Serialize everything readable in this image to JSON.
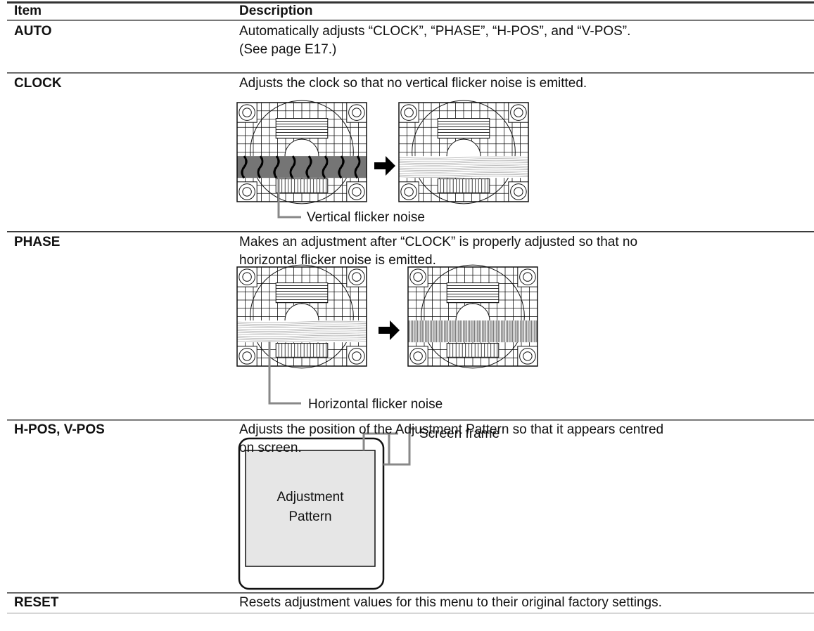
{
  "table": {
    "header": [
      "Item",
      "Description"
    ],
    "rows": [
      {
        "item": "AUTO",
        "description": [
          "Automatically adjusts “CLOCK”, “PHASE”, “H-POS”, and “V-POS”.",
          "(See page E17.)"
        ]
      },
      {
        "item": "CLOCK",
        "description": [
          "Adjusts the clock so that no vertical flicker noise is emitted."
        ],
        "figure_label": "Vertical flicker noise"
      },
      {
        "item": "PHASE",
        "description": [
          "Makes an adjustment after “CLOCK” is properly adjusted so that no",
          "horizontal flicker noise is emitted."
        ],
        "figure_label": "Horizontal flicker noise"
      },
      {
        "item": "H-POS, V-POS",
        "description": [
          "Adjusts the position of the Adjustment Pattern so that it appears centred",
          "on screen."
        ],
        "figure_labels": [
          "Screen frame",
          "Adjustment Pattern"
        ]
      },
      {
        "item": "RESET",
        "description": [
          "Resets adjustment values for this menu to their original factory settings."
        ]
      }
    ]
  }
}
